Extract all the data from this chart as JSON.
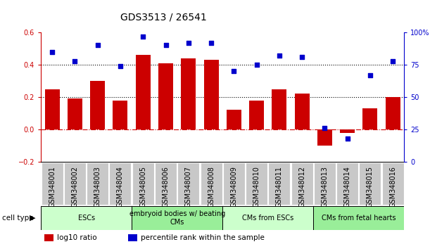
{
  "title": "GDS3513 / 26541",
  "samples": [
    "GSM348001",
    "GSM348002",
    "GSM348003",
    "GSM348004",
    "GSM348005",
    "GSM348006",
    "GSM348007",
    "GSM348008",
    "GSM348009",
    "GSM348010",
    "GSM348011",
    "GSM348012",
    "GSM348013",
    "GSM348014",
    "GSM348015",
    "GSM348016"
  ],
  "log10_ratio": [
    0.25,
    0.19,
    0.3,
    0.18,
    0.46,
    0.41,
    0.44,
    0.43,
    0.12,
    0.18,
    0.25,
    0.22,
    -0.1,
    -0.02,
    0.13,
    0.2
  ],
  "percentile_rank": [
    85,
    78,
    90,
    74,
    97,
    90,
    92,
    92,
    70,
    75,
    82,
    81,
    26,
    18,
    67,
    78
  ],
  "bar_color": "#cc0000",
  "dot_color": "#0000cc",
  "ylim_left": [
    -0.2,
    0.6
  ],
  "ylim_right": [
    0,
    100
  ],
  "yticks_left": [
    -0.2,
    0.0,
    0.2,
    0.4,
    0.6
  ],
  "yticks_right": [
    0,
    25,
    50,
    75,
    100
  ],
  "yticklabels_right": [
    "0",
    "25",
    "50",
    "75",
    "100%"
  ],
  "hlines": [
    0.0,
    0.2,
    0.4
  ],
  "hline_styles": [
    "dashdot",
    "dotted",
    "dotted"
  ],
  "hline_colors": [
    "#cc0000",
    "black",
    "black"
  ],
  "cell_type_groups": [
    {
      "label": "ESCs",
      "start": 0,
      "end": 3,
      "color": "#ccffcc"
    },
    {
      "label": "embryoid bodies w/ beating\nCMs",
      "start": 4,
      "end": 7,
      "color": "#99ee99"
    },
    {
      "label": "CMs from ESCs",
      "start": 8,
      "end": 11,
      "color": "#ccffcc"
    },
    {
      "label": "CMs from fetal hearts",
      "start": 12,
      "end": 15,
      "color": "#99ee99"
    }
  ],
  "legend_bar_label": "log10 ratio",
  "legend_dot_label": "percentile rank within the sample",
  "cell_type_label": "cell type",
  "bg_color": "#ffffff",
  "plot_bg": "#ffffff",
  "axis_color_left": "#cc0000",
  "axis_color_right": "#0000cc",
  "title_fontsize": 10,
  "tick_fontsize": 7,
  "bar_width": 0.65,
  "xtick_bg": "#c8c8c8",
  "xtick_edge": "#ffffff"
}
